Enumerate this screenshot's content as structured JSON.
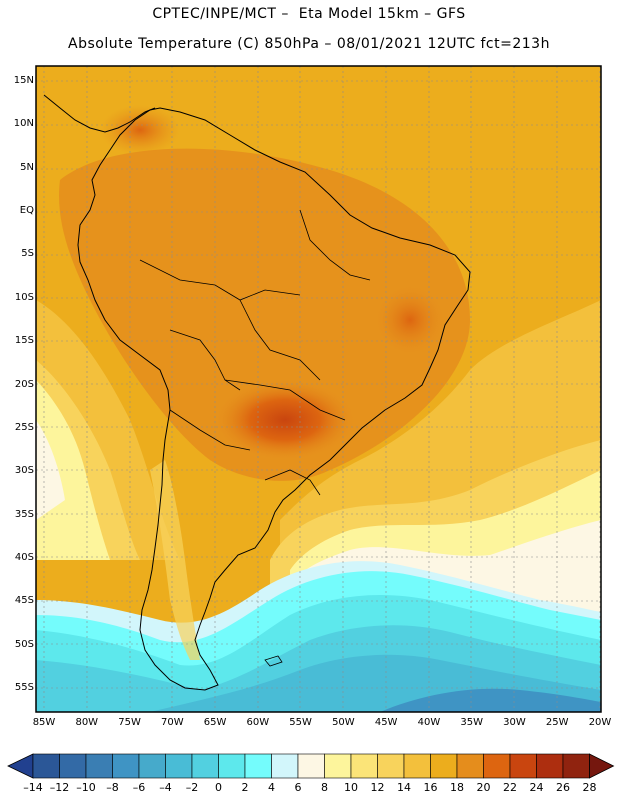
{
  "header": {
    "line1": "CPTEC/INPE/MCT –  Eta Model 15km – GFS",
    "line2": "Absolute Temperature (C) 850hPa – 08/01/2021 12UTC fct=213h"
  },
  "map": {
    "lon_range": [
      -85,
      -20
    ],
    "lat_range": [
      -58,
      17
    ],
    "lat_ticks": [
      {
        "value": 15,
        "label": "15N"
      },
      {
        "value": 10,
        "label": "10N"
      },
      {
        "value": 5,
        "label": "5N"
      },
      {
        "value": 0,
        "label": "EQ"
      },
      {
        "value": -5,
        "label": "5S"
      },
      {
        "value": -10,
        "label": "10S"
      },
      {
        "value": -15,
        "label": "15S"
      },
      {
        "value": -20,
        "label": "20S"
      },
      {
        "value": -25,
        "label": "25S"
      },
      {
        "value": -30,
        "label": "30S"
      },
      {
        "value": -35,
        "label": "35S"
      },
      {
        "value": -40,
        "label": "40S"
      },
      {
        "value": -45,
        "label": "45S"
      },
      {
        "value": -50,
        "label": "50S"
      },
      {
        "value": -55,
        "label": "55S"
      }
    ],
    "lon_ticks": [
      {
        "value": -85,
        "label": "85W"
      },
      {
        "value": -80,
        "label": "80W"
      },
      {
        "value": -75,
        "label": "75W"
      },
      {
        "value": -70,
        "label": "70W"
      },
      {
        "value": -65,
        "label": "65W"
      },
      {
        "value": -60,
        "label": "60W"
      },
      {
        "value": -55,
        "label": "55W"
      },
      {
        "value": -50,
        "label": "50W"
      },
      {
        "value": -45,
        "label": "45W"
      },
      {
        "value": -40,
        "label": "40W"
      },
      {
        "value": -35,
        "label": "35W"
      },
      {
        "value": -30,
        "label": "30W"
      },
      {
        "value": -25,
        "label": "25W"
      },
      {
        "value": -20,
        "label": "20W"
      }
    ]
  },
  "colorbar": {
    "labels": [
      "-14",
      "-12",
      "-10",
      "-8",
      "-6",
      "-4",
      "-2",
      "0",
      "2",
      "4",
      "6",
      "8",
      "10",
      "12",
      "14",
      "16",
      "18",
      "20",
      "22",
      "24",
      "26",
      "28"
    ],
    "colors": [
      "#21408f",
      "#2b5797",
      "#336aa6",
      "#3a7eb3",
      "#3f94c4",
      "#46aacb",
      "#49bcd6",
      "#52d0e0",
      "#5de8ec",
      "#74fcfc",
      "#d2f6fb",
      "#fdf7e4",
      "#fdf59c",
      "#fbe478",
      "#f8d35c",
      "#f3c03c",
      "#ecad1d",
      "#e58d1c",
      "#dd6510",
      "#c9450f",
      "#ad2e0f",
      "#90230f",
      "#75170e"
    ]
  }
}
